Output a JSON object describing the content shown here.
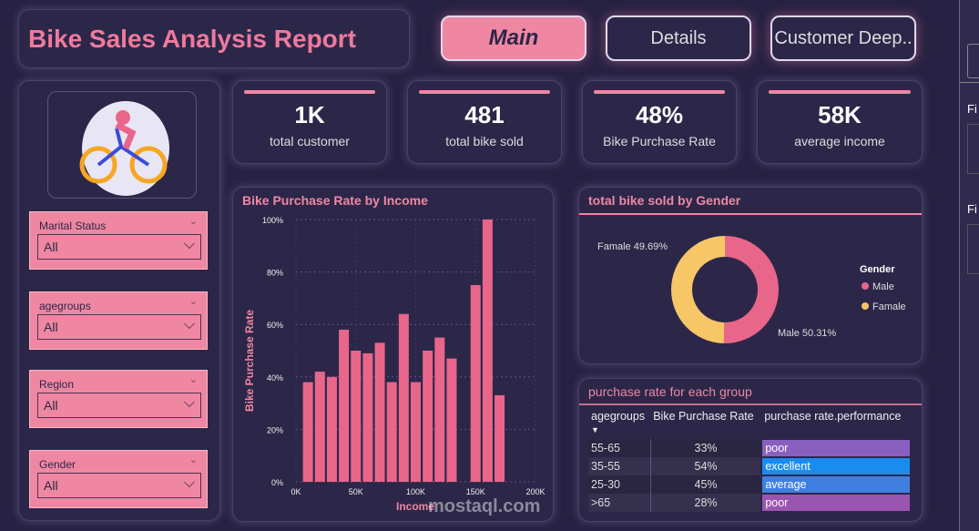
{
  "header": {
    "title": "Bike Sales Analysis Report",
    "nav": [
      "Main",
      "Details",
      "Customer Deep.."
    ]
  },
  "slicers": [
    {
      "label": "Marital Status",
      "value": "All"
    },
    {
      "label": "agegroups",
      "value": "All"
    },
    {
      "label": "Region",
      "value": "All"
    },
    {
      "label": "Gender",
      "value": "All"
    }
  ],
  "kpis": [
    {
      "value": "1K",
      "label": "total customer"
    },
    {
      "value": "481",
      "label": "total bike sold"
    },
    {
      "value": "48%",
      "label": "Bike Purchase Rate"
    },
    {
      "value": "58K",
      "label": "average income"
    }
  ],
  "colors": {
    "accent": "#ef87a2",
    "background": "#272243",
    "male": "#e8668a",
    "female": "#f6c667"
  },
  "right_pane": {
    "labels": [
      "Fi",
      "Fi"
    ]
  },
  "watermark": "mostaql.com",
  "chart_data": [
    {
      "type": "bar",
      "title": "Bike Purchase Rate by Income",
      "xlabel": "Income",
      "ylabel": "Bike Purchase Rate",
      "xlim": [
        0,
        200000
      ],
      "ylim": [
        0,
        100
      ],
      "xticks": [
        "0K",
        "50K",
        "100K",
        "150K",
        "200K"
      ],
      "yticks": [
        "0%",
        "20%",
        "40%",
        "60%",
        "80%",
        "100%"
      ],
      "grid": true,
      "x": [
        10000,
        20000,
        30000,
        40000,
        50000,
        60000,
        70000,
        80000,
        90000,
        100000,
        110000,
        120000,
        130000,
        150000,
        160000,
        170000
      ],
      "values": [
        38,
        42,
        40,
        58,
        50,
        49,
        53,
        38,
        64,
        38,
        50,
        55,
        47,
        75,
        100,
        33
      ]
    },
    {
      "type": "pie",
      "title": "total bike sold by Gender",
      "legend_title": "Gender",
      "legend": "right",
      "slices": [
        {
          "name": "Male",
          "value": 50.31,
          "label": "Male 50.31%"
        },
        {
          "name": "Famale",
          "value": 49.69,
          "label": "Famale 49.69%"
        }
      ]
    },
    {
      "type": "table",
      "title": "purchase rate for each group",
      "columns": [
        "agegroups",
        "Bike Purchase Rate",
        "purchase rate.performance"
      ],
      "rows": [
        [
          "55-65",
          "33%",
          "poor"
        ],
        [
          "35-55",
          "54%",
          "excellent"
        ],
        [
          "25-30",
          "45%",
          "average"
        ],
        [
          ">65",
          "28%",
          "poor"
        ]
      ],
      "performance_colors": [
        "#8a5fc0",
        "#1a8cf0",
        "#3f7fe0",
        "#9a55b0"
      ]
    }
  ]
}
